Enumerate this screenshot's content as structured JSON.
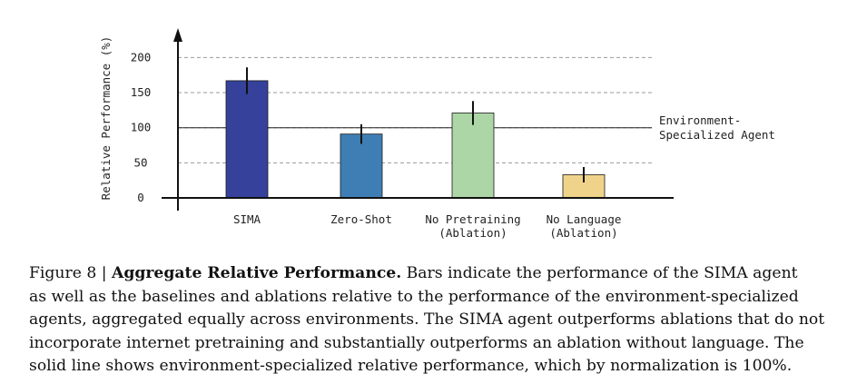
{
  "chart_data": {
    "type": "bar",
    "ylabel": "Relative Performance (%)",
    "xlabel": "",
    "ylim": [
      0,
      220
    ],
    "yticks": [
      0,
      50,
      100,
      150,
      200
    ],
    "grid": "dashed horizontal",
    "categories": [
      [
        "SIMA"
      ],
      [
        "Zero-Shot"
      ],
      [
        "No Pretraining",
        "(Ablation)"
      ],
      [
        "No Language",
        "(Ablation)"
      ]
    ],
    "values": [
      167,
      91,
      121,
      33
    ],
    "error": [
      [
        148,
        186
      ],
      [
        77,
        105
      ],
      [
        104,
        138
      ],
      [
        22,
        44
      ]
    ],
    "colors": [
      "#35419a",
      "#3f7eb4",
      "#acd6a6",
      "#f0d38a"
    ],
    "reference_line": {
      "value": 100,
      "label": [
        "Environment-",
        "Specialized Agent"
      ]
    }
  },
  "caption": {
    "prefix": "Figure 8 | ",
    "title": "Aggregate Relative Performance.",
    "lines": [
      " Bars indicate the performance of the SIMA agent",
      "as well as the baselines and ablations relative to the performance of the environment-specialized",
      "agents, aggregated equally across environments. The SIMA agent outperforms ablations that do not",
      "incorporate internet pretraining and substantially outperforms an ablation without language. The",
      "solid line shows environment-specialized relative performance, which by normalization is 100%."
    ]
  }
}
